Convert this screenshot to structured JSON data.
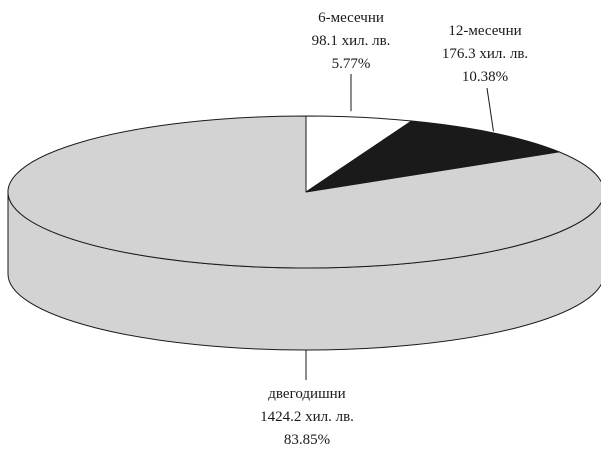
{
  "chart_data": {
    "type": "pie",
    "style": "3d",
    "slices": [
      {
        "name": "6-месечни",
        "value_label": "98.1 хил. лв.",
        "value": 98.1,
        "percent_label": "5.77%",
        "percent": 5.77,
        "color": "#ffffff"
      },
      {
        "name": "12-месечни",
        "value_label": "176.3 хил. лв.",
        "value": 176.3,
        "percent_label": "10.38%",
        "percent": 10.38,
        "color": "#1a1a1a"
      },
      {
        "name": "двегодишни",
        "value_label": "1424.2 хил. лв.",
        "value": 1424.2,
        "percent_label": "83.85%",
        "percent": 83.85,
        "color": "#d3d3d3"
      }
    ]
  }
}
